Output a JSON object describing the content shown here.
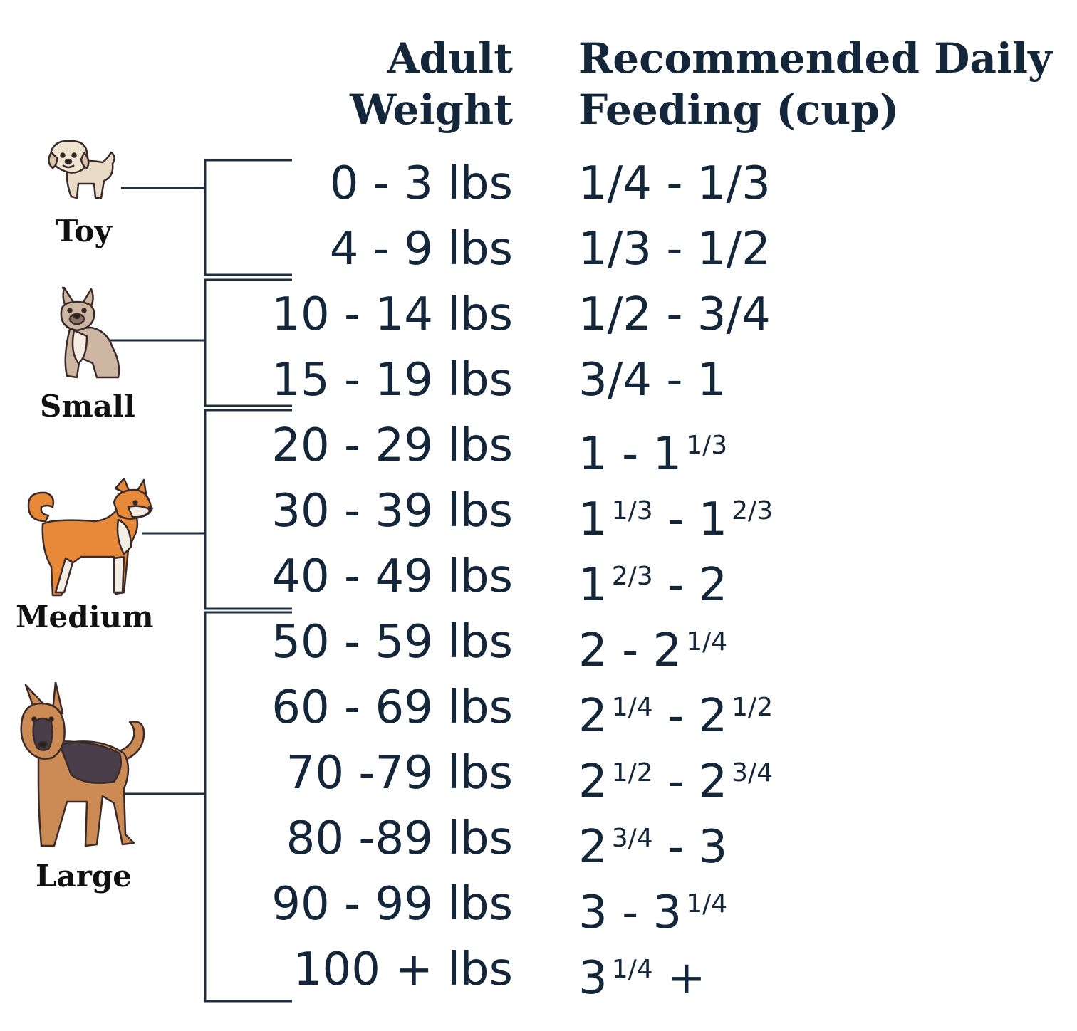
{
  "headers": {
    "weight_line1": "Adult",
    "weight_line2": "Weight",
    "feeding_line1": "Recommended Daily",
    "feeding_line2": "Feeding (cup)"
  },
  "sizes": [
    {
      "label": "Toy",
      "icon": "toy-dog-icon"
    },
    {
      "label": "Small",
      "icon": "small-dog-icon"
    },
    {
      "label": "Medium",
      "icon": "medium-dog-icon"
    },
    {
      "label": "Large",
      "icon": "large-dog-icon"
    }
  ],
  "rows": [
    {
      "weight": "0 - 3 lbs",
      "feed": "1/4 - 1/3"
    },
    {
      "weight": "4 - 9 lbs",
      "feed": "1/3 - 1/2"
    },
    {
      "weight": "10 - 14 lbs",
      "feed": "1/2 - 3/4"
    },
    {
      "weight": "15 - 19 lbs",
      "feed": "3/4 - 1"
    },
    {
      "weight": "20 - 29 lbs",
      "feed_a": "1 - 1",
      "feed_a_sup": "1/3"
    },
    {
      "weight": "30 - 39 lbs",
      "feed_a": "1",
      "feed_a_sup": "1/3",
      "feed_b": " - 1",
      "feed_b_sup": "2/3"
    },
    {
      "weight": "40 - 49 lbs",
      "feed_a": "1",
      "feed_a_sup": "2/3",
      "feed_b": " - 2"
    },
    {
      "weight": "50 - 59 lbs",
      "feed_a": "2 - 2",
      "feed_a_sup": "1/4"
    },
    {
      "weight": "60 - 69 lbs",
      "feed_a": "2",
      "feed_a_sup": "1/4",
      "feed_b": " - 2",
      "feed_b_sup": "1/2"
    },
    {
      "weight": "70 -79 lbs",
      "feed_a": "2",
      "feed_a_sup": "1/2",
      "feed_b": " - 2",
      "feed_b_sup": "3/4"
    },
    {
      "weight": "80 -89 lbs",
      "feed_a": "2",
      "feed_a_sup": "3/4",
      "feed_b": " - 3"
    },
    {
      "weight": "90 - 99 lbs",
      "feed_a": "3 - 3",
      "feed_a_sup": "1/4"
    },
    {
      "weight": "100 + lbs",
      "feed_a": "3",
      "feed_a_sup": "1/4",
      "feed_b": " +"
    }
  ],
  "colors": {
    "text": "#14263a",
    "bracket": "#1f2f40"
  }
}
